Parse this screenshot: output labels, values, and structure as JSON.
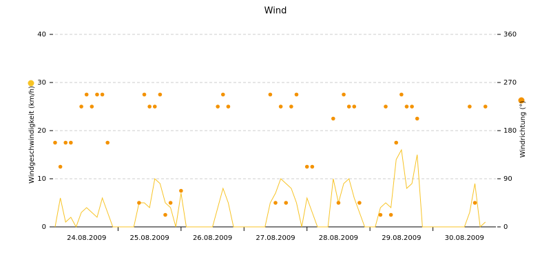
{
  "chart_data": {
    "type": "line-scatter",
    "title": "Wind",
    "x": [
      0,
      2,
      4,
      6,
      8,
      10,
      12,
      14,
      16,
      18,
      20,
      22,
      24,
      26,
      28,
      30,
      32,
      34,
      36,
      38,
      40,
      42,
      44,
      46,
      48,
      50,
      52,
      54,
      56,
      58,
      60,
      62,
      64,
      66,
      68,
      70,
      72,
      74,
      76,
      78,
      80,
      82,
      84,
      86,
      88,
      90,
      92,
      94,
      96,
      98,
      100,
      102,
      104,
      106,
      108,
      110,
      112,
      114,
      116,
      118,
      120,
      122,
      124,
      126,
      128,
      130,
      132,
      134,
      136,
      138,
      140,
      142,
      144,
      146,
      148,
      150,
      152,
      154,
      156,
      158,
      160,
      162,
      164,
      166,
      168
    ],
    "xlim": [
      0,
      168
    ],
    "xticks": [
      {
        "value": 12,
        "label": "24.08.2009"
      },
      {
        "value": 36,
        "label": "25.08.2009"
      },
      {
        "value": 60,
        "label": "26.08.2009"
      },
      {
        "value": 84,
        "label": "27.08.2009"
      },
      {
        "value": 108,
        "label": "28.08.2009"
      },
      {
        "value": 132,
        "label": "29.08.2009"
      },
      {
        "value": 156,
        "label": "30.08.2009"
      }
    ],
    "ylim": [
      0,
      40
    ],
    "yticks": [
      0,
      10,
      20,
      30,
      40
    ],
    "y2lim": [
      0,
      360
    ],
    "y2ticks": [
      0,
      90,
      180,
      270,
      360
    ],
    "grid": true,
    "series": [
      {
        "name": "Windgeschwindigkeit (km/h)",
        "color": "#f7c325",
        "kind": "line",
        "values": [
          0,
          6,
          1,
          2,
          0,
          3,
          4,
          3,
          2,
          6,
          3,
          0,
          0,
          0,
          0,
          0,
          5,
          5,
          4,
          10,
          9,
          5,
          4,
          0,
          7,
          0,
          0,
          0,
          0,
          0,
          0,
          4,
          8,
          5,
          0,
          0,
          0,
          0,
          0,
          0,
          0,
          5,
          7,
          10,
          9,
          8,
          5,
          0,
          6,
          3,
          0,
          0,
          0,
          10,
          5,
          9,
          10,
          6,
          3,
          0,
          0,
          0,
          4,
          5,
          4,
          14,
          16,
          8,
          9,
          15,
          0,
          0,
          0,
          0,
          0,
          0,
          0,
          0,
          0,
          3,
          9,
          0,
          1,
          null,
          null
        ]
      },
      {
        "name": "Windrichtung (°)",
        "color": "#f39200",
        "kind": "scatter",
        "axis": "y2",
        "values": [
          157.5,
          112.5,
          157.5,
          157.5,
          null,
          225,
          247.5,
          225,
          247.5,
          247.5,
          157.5,
          null,
          null,
          null,
          null,
          null,
          45,
          247.5,
          225,
          225,
          247.5,
          22.5,
          45,
          null,
          67.5,
          null,
          null,
          null,
          null,
          null,
          null,
          225,
          247.5,
          225,
          null,
          null,
          null,
          null,
          null,
          null,
          null,
          247.5,
          45,
          225,
          45,
          225,
          247.5,
          null,
          112.5,
          112.5,
          null,
          null,
          null,
          202.5,
          45,
          247.5,
          225,
          225,
          45,
          null,
          null,
          null,
          22.5,
          225,
          22.5,
          157.5,
          247.5,
          225,
          225,
          202.5,
          null,
          null,
          null,
          null,
          null,
          null,
          null,
          null,
          null,
          225,
          45,
          null,
          225,
          null,
          null
        ]
      }
    ]
  }
}
